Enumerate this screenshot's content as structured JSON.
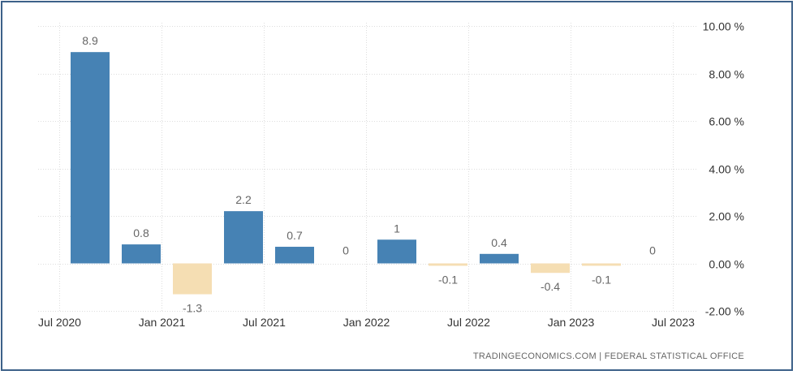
{
  "chart_data": {
    "type": "bar",
    "title": "",
    "xlabel": "",
    "ylabel": "",
    "ylim": [
      -2,
      10
    ],
    "y_ticks": [
      10,
      8,
      6,
      4,
      2,
      0,
      -2
    ],
    "y_tick_labels": [
      "10.00 %",
      "8.00 %",
      "6.00 %",
      "4.00 %",
      "2.00 %",
      "0.00 %",
      "-2.00 %"
    ],
    "x_ticks": [
      "Jul 2020",
      "Jan 2021",
      "Jul 2021",
      "Jan 2022",
      "Jul 2022",
      "Jan 2023",
      "Jul 2023"
    ],
    "x_tick_positions": [
      0,
      2,
      4,
      6,
      8,
      10,
      12
    ],
    "categories": [
      "Jul 2020",
      "Oct 2020",
      "Jan 2021",
      "Apr 2021",
      "Jul 2021",
      "Oct 2021",
      "Jan 2022",
      "Apr 2022",
      "Jul 2022",
      "Oct 2022",
      "Jan 2023",
      "Apr 2023",
      "Jul 2023"
    ],
    "values": [
      8.9,
      0.8,
      -1.3,
      2.2,
      0.7,
      0,
      1,
      -0.1,
      0.4,
      -0.4,
      -0.1,
      0,
      null
    ],
    "value_labels": [
      "8.9",
      "0.8",
      "-1.3",
      "2.2",
      "0.7",
      "0",
      "1",
      "-0.1",
      "0.4",
      "-0.4",
      "-0.1",
      "0",
      ""
    ],
    "colors": {
      "positive": "#4682b4",
      "negative": "#f5deb3",
      "grid": "#dddddd"
    },
    "legend": "none",
    "grid": true
  },
  "footer": {
    "source": "TRADINGECONOMICS.COM  |  FEDERAL STATISTICAL OFFICE"
  }
}
